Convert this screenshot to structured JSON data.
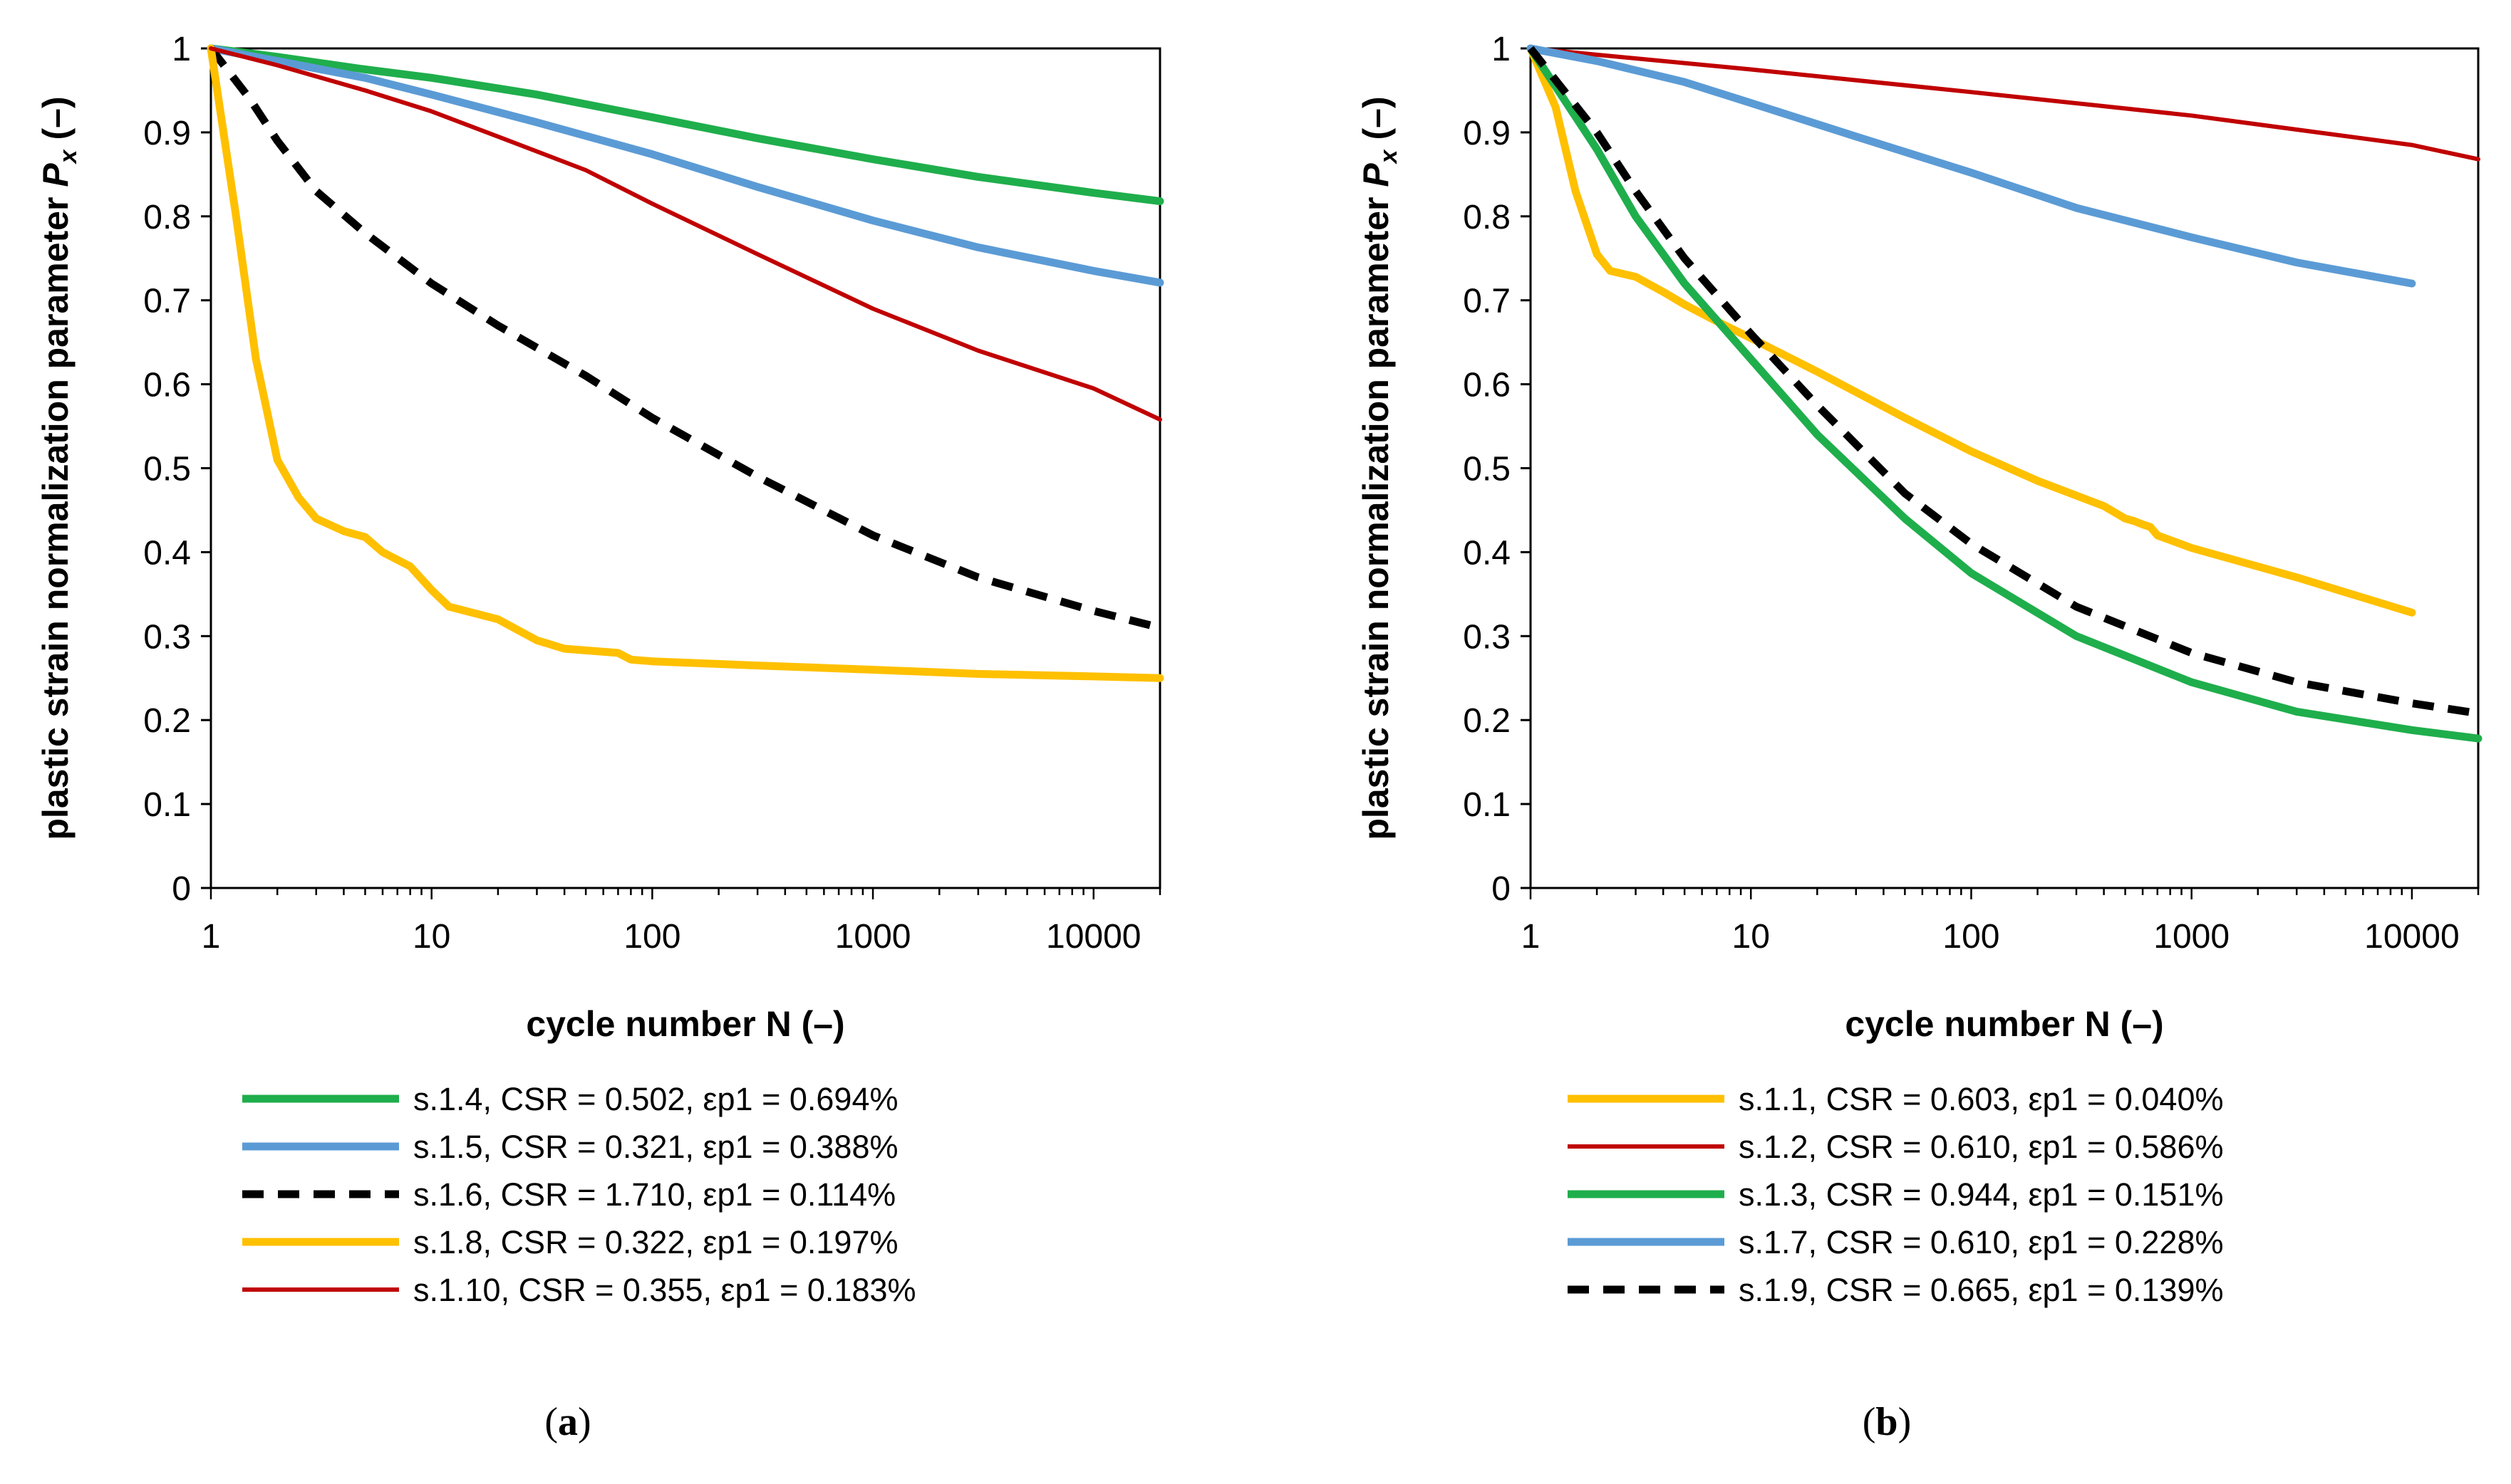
{
  "chart_data": [
    {
      "id": "a",
      "type": "line",
      "xscale": "log",
      "xlim": [
        1,
        20000
      ],
      "ylim": [
        0,
        1
      ],
      "xticks": [
        1,
        10,
        100,
        1000,
        10000
      ],
      "xtick_labels": [
        "1",
        "10",
        "100",
        "1000",
        "10000"
      ],
      "yticks": [
        0,
        0.1,
        0.2,
        0.3,
        0.4,
        0.5,
        0.6,
        0.7,
        0.8,
        0.9,
        1
      ],
      "ytick_labels": [
        "0",
        "0.1",
        "0.2",
        "0.3",
        "0.4",
        "0.5",
        "0.6",
        "0.7",
        "0.8",
        "0.9",
        "1"
      ],
      "xlabel": "cycle number N (–)",
      "ylabel_main": "plastic strain normalization parameter ",
      "ylabel_symbol": "P",
      "ylabel_sub": "x",
      "ylabel_unit": " (–)",
      "caption_paren_open": "(",
      "caption_letter": "a",
      "caption_paren_close": ")",
      "series": [
        {
          "name": "s.1.4, CSR = 0.502, εp1 = 0.694%",
          "color": "#1fae4c",
          "style": "solid",
          "weight": "thick",
          "points": [
            [
              1,
              1
            ],
            [
              2,
              0.99
            ],
            [
              5,
              0.975
            ],
            [
              10,
              0.965
            ],
            [
              30,
              0.945
            ],
            [
              100,
              0.918
            ],
            [
              300,
              0.893
            ],
            [
              1000,
              0.868
            ],
            [
              3000,
              0.847
            ],
            [
              10000,
              0.828
            ],
            [
              20000,
              0.818
            ]
          ]
        },
        {
          "name": "s.1.5, CSR = 0.321, εp1 = 0.388%",
          "color": "#5b9bd5",
          "style": "solid",
          "weight": "thick",
          "points": [
            [
              1,
              1
            ],
            [
              2,
              0.985
            ],
            [
              5,
              0.965
            ],
            [
              10,
              0.945
            ],
            [
              30,
              0.912
            ],
            [
              100,
              0.874
            ],
            [
              300,
              0.835
            ],
            [
              1000,
              0.795
            ],
            [
              3000,
              0.763
            ],
            [
              10000,
              0.735
            ],
            [
              20000,
              0.721
            ]
          ]
        },
        {
          "name": "s.1.6, CSR = 1.710, εp1 = 0.114%",
          "color": "#000000",
          "style": "dashed",
          "weight": "thick",
          "points": [
            [
              1,
              1
            ],
            [
              1.5,
              0.94
            ],
            [
              2,
              0.89
            ],
            [
              3,
              0.83
            ],
            [
              5,
              0.78
            ],
            [
              10,
              0.72
            ],
            [
              20,
              0.67
            ],
            [
              50,
              0.61
            ],
            [
              100,
              0.56
            ],
            [
              300,
              0.49
            ],
            [
              1000,
              0.42
            ],
            [
              3000,
              0.37
            ],
            [
              10000,
              0.33
            ],
            [
              20000,
              0.31
            ]
          ]
        },
        {
          "name": "s.1.8, CSR = 0.322, εp1 = 0.197%",
          "color": "#ffc000",
          "style": "solid",
          "weight": "thick",
          "points": [
            [
              1,
              1
            ],
            [
              1.3,
              0.8
            ],
            [
              1.6,
              0.63
            ],
            [
              2,
              0.51
            ],
            [
              2.5,
              0.465
            ],
            [
              3,
              0.44
            ],
            [
              4,
              0.425
            ],
            [
              5,
              0.418
            ],
            [
              6,
              0.4
            ],
            [
              8,
              0.383
            ],
            [
              10,
              0.355
            ],
            [
              12,
              0.335
            ],
            [
              20,
              0.32
            ],
            [
              30,
              0.295
            ],
            [
              40,
              0.285
            ],
            [
              70,
              0.28
            ],
            [
              80,
              0.272
            ],
            [
              100,
              0.27
            ],
            [
              300,
              0.265
            ],
            [
              1000,
              0.26
            ],
            [
              3000,
              0.255
            ],
            [
              10000,
              0.252
            ],
            [
              20000,
              0.25
            ]
          ]
        },
        {
          "name": "s.1.10, CSR = 0.355, εp1 = 0.183%",
          "color": "#c00000",
          "style": "solid",
          "weight": "thin",
          "points": [
            [
              1,
              1
            ],
            [
              2,
              0.98
            ],
            [
              5,
              0.95
            ],
            [
              10,
              0.925
            ],
            [
              20,
              0.895
            ],
            [
              50,
              0.855
            ],
            [
              100,
              0.815
            ],
            [
              300,
              0.755
            ],
            [
              1000,
              0.69
            ],
            [
              3000,
              0.64
            ],
            [
              10000,
              0.595
            ],
            [
              20000,
              0.558
            ]
          ]
        }
      ]
    },
    {
      "id": "b",
      "type": "line",
      "xscale": "log",
      "xlim": [
        1,
        20000
      ],
      "ylim": [
        0,
        1
      ],
      "xticks": [
        1,
        10,
        100,
        1000,
        10000
      ],
      "xtick_labels": [
        "1",
        "10",
        "100",
        "1000",
        "10000"
      ],
      "yticks": [
        0,
        0.1,
        0.2,
        0.3,
        0.4,
        0.5,
        0.6,
        0.7,
        0.8,
        0.9,
        1
      ],
      "ytick_labels": [
        "0",
        "0.1",
        "0.2",
        "0.3",
        "0.4",
        "0.5",
        "0.6",
        "0.7",
        "0.8",
        "0.9",
        "1"
      ],
      "xlabel": "cycle number N (–)",
      "ylabel_main": "plastic strain normalization parameter ",
      "ylabel_symbol": "P",
      "ylabel_sub": "x",
      "ylabel_unit": " (–)",
      "caption_paren_open": "(",
      "caption_letter": "b",
      "caption_paren_close": ")",
      "series": [
        {
          "name": "s.1.1, CSR = 0.603, εp1 = 0.040%",
          "color": "#ffc000",
          "style": "solid",
          "weight": "thick",
          "points": [
            [
              1,
              1
            ],
            [
              1.3,
              0.93
            ],
            [
              1.6,
              0.83
            ],
            [
              2,
              0.755
            ],
            [
              2.3,
              0.735
            ],
            [
              3,
              0.728
            ],
            [
              4,
              0.71
            ],
            [
              5,
              0.695
            ],
            [
              7,
              0.675
            ],
            [
              10,
              0.655
            ],
            [
              20,
              0.615
            ],
            [
              50,
              0.56
            ],
            [
              100,
              0.52
            ],
            [
              200,
              0.485
            ],
            [
              400,
              0.455
            ],
            [
              500,
              0.44
            ],
            [
              550,
              0.437
            ],
            [
              600,
              0.433
            ],
            [
              650,
              0.43
            ],
            [
              700,
              0.42
            ],
            [
              1000,
              0.405
            ],
            [
              3000,
              0.37
            ],
            [
              10000,
              0.328
            ]
          ]
        },
        {
          "name": "s.1.2, CSR = 0.610, εp1 = 0.586%",
          "color": "#c00000",
          "style": "solid",
          "weight": "thin",
          "points": [
            [
              1,
              1
            ],
            [
              10,
              0.975
            ],
            [
              100,
              0.948
            ],
            [
              1000,
              0.92
            ],
            [
              10000,
              0.885
            ],
            [
              20000,
              0.868
            ]
          ]
        },
        {
          "name": "s.1.3, CSR = 0.944, εp1 = 0.151%",
          "color": "#1fae4c",
          "style": "solid",
          "weight": "thick",
          "points": [
            [
              1,
              1
            ],
            [
              2,
              0.88
            ],
            [
              3,
              0.8
            ],
            [
              5,
              0.72
            ],
            [
              10,
              0.63
            ],
            [
              20,
              0.54
            ],
            [
              50,
              0.44
            ],
            [
              100,
              0.375
            ],
            [
              300,
              0.3
            ],
            [
              1000,
              0.245
            ],
            [
              3000,
              0.21
            ],
            [
              10000,
              0.188
            ],
            [
              20000,
              0.178
            ]
          ]
        },
        {
          "name": "s.1.7, CSR = 0.610, εp1 = 0.228%",
          "color": "#5b9bd5",
          "style": "solid",
          "weight": "thick",
          "points": [
            [
              1,
              1
            ],
            [
              2,
              0.985
            ],
            [
              5,
              0.96
            ],
            [
              10,
              0.935
            ],
            [
              30,
              0.895
            ],
            [
              100,
              0.852
            ],
            [
              300,
              0.81
            ],
            [
              1000,
              0.775
            ],
            [
              3000,
              0.745
            ],
            [
              10000,
              0.72
            ]
          ]
        },
        {
          "name": "s.1.9, CSR = 0.665, εp1 = 0.139%",
          "color": "#000000",
          "style": "dashed",
          "weight": "thick",
          "points": [
            [
              1,
              1
            ],
            [
              2,
              0.9
            ],
            [
              3,
              0.83
            ],
            [
              5,
              0.75
            ],
            [
              10,
              0.66
            ],
            [
              20,
              0.575
            ],
            [
              50,
              0.47
            ],
            [
              100,
              0.41
            ],
            [
              300,
              0.335
            ],
            [
              1000,
              0.28
            ],
            [
              3000,
              0.245
            ],
            [
              10000,
              0.22
            ],
            [
              20000,
              0.208
            ]
          ]
        }
      ]
    }
  ]
}
